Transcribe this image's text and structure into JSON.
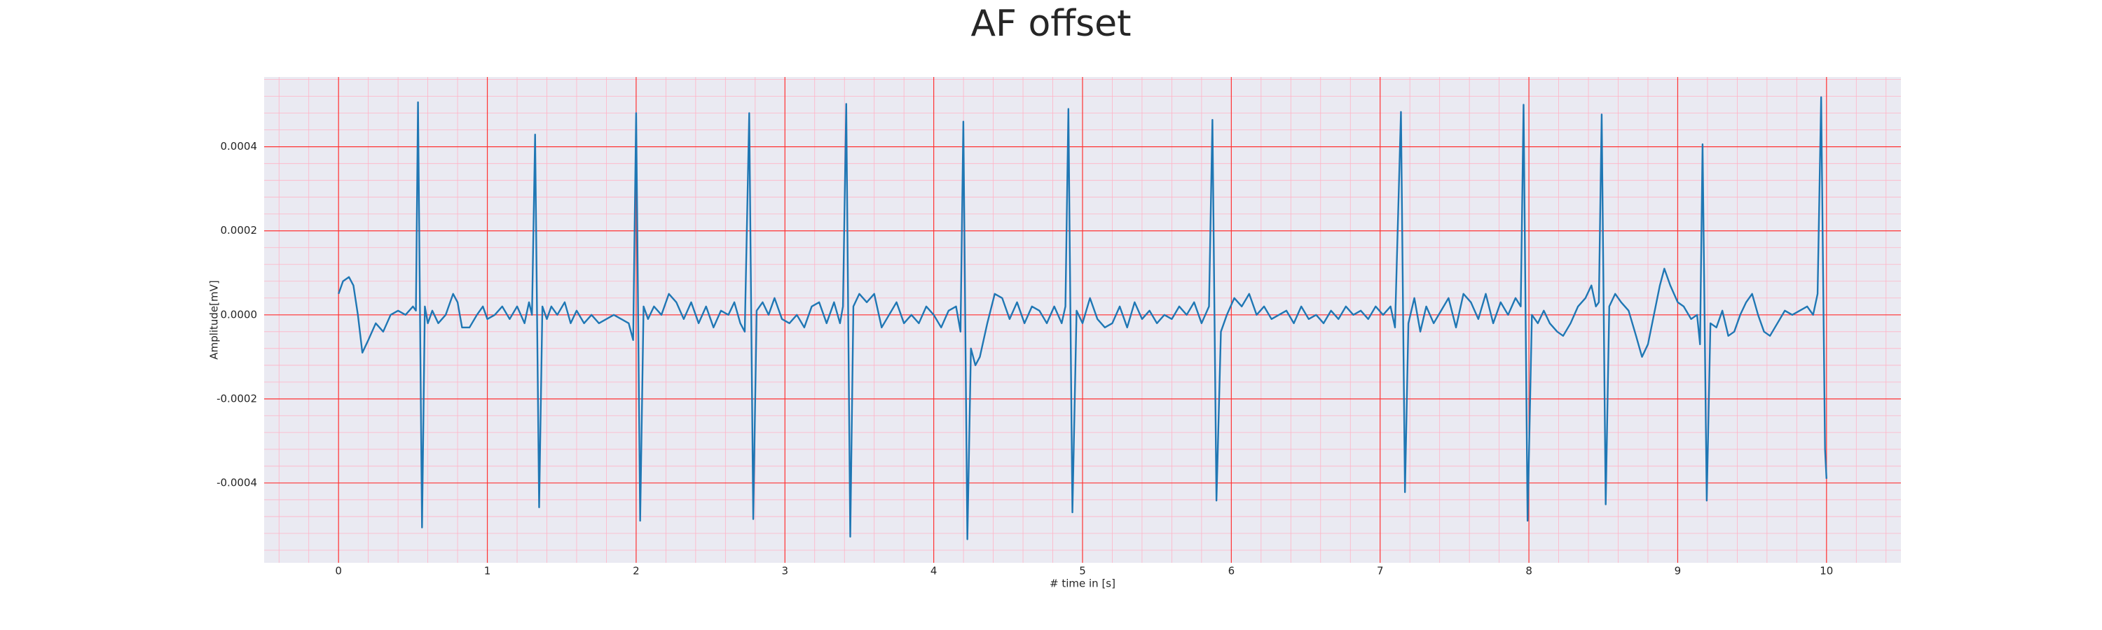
{
  "chart_data": {
    "type": "line",
    "title": "AF offset",
    "x_label": "# time in [s]",
    "y_label": "Amplitude[mV]",
    "xlim": [
      -0.5,
      10.5
    ],
    "ylim": [
      -0.00059,
      0.000566
    ],
    "xticks": [
      0,
      1,
      2,
      3,
      4,
      5,
      6,
      7,
      8,
      9,
      10
    ],
    "yticks": [
      -0.0004,
      -0.0002,
      {
        "value": 0,
        "label": "0.0000"
      },
      0.0002,
      0.0004
    ],
    "grid": true,
    "grid_color": "#ff3333",
    "minor_grid": true,
    "minor_grid_color": "#ffb3c6",
    "minor_grid_divisions": 5,
    "background": "#eaeaf2",
    "series": [
      {
        "color": "#1f77b4",
        "x": [
          0,
          0.03,
          0.07,
          0.1,
          0.13,
          0.16,
          0.2,
          0.25,
          0.3,
          0.35,
          0.4,
          0.45,
          0.5,
          0.52,
          0.534,
          0.561,
          0.58,
          0.6,
          0.63,
          0.67,
          0.72,
          0.77,
          0.8,
          0.83,
          0.88,
          0.93,
          0.97,
          1.0,
          1.05,
          1.1,
          1.15,
          1.2,
          1.25,
          1.28,
          1.3,
          1.321,
          1.348,
          1.37,
          1.4,
          1.43,
          1.47,
          1.52,
          1.56,
          1.6,
          1.65,
          1.7,
          1.75,
          1.8,
          1.85,
          1.9,
          1.95,
          1.98,
          2.0,
          2.027,
          2.05,
          2.08,
          2.12,
          2.17,
          2.22,
          2.27,
          2.32,
          2.37,
          2.42,
          2.47,
          2.52,
          2.57,
          2.62,
          2.66,
          2.7,
          2.73,
          2.76,
          2.787,
          2.81,
          2.85,
          2.89,
          2.93,
          2.98,
          3.03,
          3.08,
          3.13,
          3.18,
          3.23,
          3.28,
          3.33,
          3.37,
          3.39,
          3.412,
          3.439,
          3.46,
          3.5,
          3.55,
          3.6,
          3.65,
          3.7,
          3.75,
          3.8,
          3.85,
          3.9,
          3.95,
          4.0,
          4.05,
          4.1,
          4.15,
          4.18,
          4.199,
          4.226,
          4.25,
          4.28,
          4.31,
          4.36,
          4.41,
          4.46,
          4.51,
          4.56,
          4.61,
          4.66,
          4.71,
          4.76,
          4.81,
          4.86,
          4.885,
          4.905,
          4.932,
          4.96,
          5.0,
          5.05,
          5.1,
          5.15,
          5.2,
          5.25,
          5.3,
          5.35,
          5.4,
          5.45,
          5.5,
          5.55,
          5.6,
          5.65,
          5.7,
          5.75,
          5.8,
          5.85,
          5.873,
          5.9,
          5.93,
          5.97,
          6.02,
          6.07,
          6.12,
          6.17,
          6.22,
          6.27,
          6.32,
          6.37,
          6.42,
          6.47,
          6.52,
          6.57,
          6.62,
          6.67,
          6.72,
          6.77,
          6.82,
          6.87,
          6.92,
          6.97,
          7.02,
          7.07,
          7.1,
          7.14,
          7.167,
          7.19,
          7.23,
          7.27,
          7.31,
          7.36,
          7.41,
          7.46,
          7.51,
          7.56,
          7.61,
          7.66,
          7.71,
          7.76,
          7.81,
          7.86,
          7.91,
          7.945,
          7.964,
          7.991,
          8.02,
          8.06,
          8.1,
          8.14,
          8.19,
          8.23,
          8.28,
          8.33,
          8.38,
          8.42,
          8.45,
          8.47,
          8.489,
          8.516,
          8.54,
          8.58,
          8.62,
          8.67,
          8.72,
          8.76,
          8.8,
          8.84,
          8.88,
          8.91,
          8.95,
          9.0,
          9.04,
          9.09,
          9.13,
          9.15,
          9.167,
          9.195,
          9.22,
          9.26,
          9.3,
          9.34,
          9.38,
          9.42,
          9.46,
          9.5,
          9.54,
          9.58,
          9.62,
          9.67,
          9.72,
          9.77,
          9.82,
          9.87,
          9.91,
          9.94,
          9.964,
          9.99,
          10.0
        ],
        "values": [
          5e-05,
          8e-05,
          9e-05,
          7e-05,
          0.0,
          -9e-05,
          -6e-05,
          -2e-05,
          -4e-05,
          0.0,
          1e-05,
          0.0,
          2e-05,
          1e-05,
          0.000506,
          -0.000506,
          2e-05,
          -2e-05,
          1e-05,
          -2e-05,
          0.0,
          5e-05,
          3e-05,
          -3e-05,
          -3e-05,
          0.0,
          2e-05,
          -1e-05,
          0.0,
          2e-05,
          -1e-05,
          2e-05,
          -2e-05,
          3e-05,
          0.0,
          0.000429,
          -0.000458,
          2e-05,
          -1e-05,
          2e-05,
          0.0,
          3e-05,
          -2e-05,
          1e-05,
          -2e-05,
          0.0,
          -2e-05,
          -1e-05,
          0.0,
          -1e-05,
          -2e-05,
          -6e-05,
          0.00048,
          -0.00049,
          2e-05,
          -1e-05,
          2e-05,
          0.0,
          5e-05,
          3e-05,
          -1e-05,
          3e-05,
          -2e-05,
          2e-05,
          -3e-05,
          1e-05,
          0.0,
          3e-05,
          -2e-05,
          -4e-05,
          0.00048,
          -0.000486,
          1e-05,
          3e-05,
          0.0,
          4e-05,
          -1e-05,
          -2e-05,
          0.0,
          -3e-05,
          2e-05,
          3e-05,
          -2e-05,
          3e-05,
          -2e-05,
          2e-05,
          0.000502,
          -0.000528,
          2e-05,
          5e-05,
          3e-05,
          5e-05,
          -3e-05,
          0.0,
          3e-05,
          -2e-05,
          0.0,
          -2e-05,
          2e-05,
          0.0,
          -3e-05,
          1e-05,
          2e-05,
          -4e-05,
          0.00046,
          -0.000534,
          -8e-05,
          -0.00012,
          -0.0001,
          -2e-05,
          5e-05,
          4e-05,
          -1e-05,
          3e-05,
          -2e-05,
          2e-05,
          1e-05,
          -2e-05,
          2e-05,
          -2e-05,
          2e-05,
          0.00049,
          -0.00047,
          1e-05,
          -2e-05,
          4e-05,
          -1e-05,
          -3e-05,
          -2e-05,
          2e-05,
          -3e-05,
          3e-05,
          -1e-05,
          1e-05,
          -2e-05,
          0.0,
          -1e-05,
          2e-05,
          0.0,
          3e-05,
          -2e-05,
          2e-05,
          0.000464,
          -0.000442,
          -4e-05,
          0.0,
          4e-05,
          2e-05,
          5e-05,
          0.0,
          2e-05,
          -1e-05,
          0.0,
          1e-05,
          -2e-05,
          2e-05,
          -1e-05,
          0.0,
          -2e-05,
          1e-05,
          -1e-05,
          2e-05,
          0.0,
          1e-05,
          -1e-05,
          2e-05,
          0.0,
          2e-05,
          -3e-05,
          0.000483,
          -0.000422,
          -2e-05,
          4e-05,
          -4e-05,
          2e-05,
          -2e-05,
          1e-05,
          4e-05,
          -3e-05,
          5e-05,
          3e-05,
          -1e-05,
          5e-05,
          -2e-05,
          3e-05,
          0.0,
          4e-05,
          2e-05,
          0.0005,
          -0.00049,
          0.0,
          -2e-05,
          1e-05,
          -2e-05,
          -4e-05,
          -5e-05,
          -2e-05,
          2e-05,
          4e-05,
          7e-05,
          2e-05,
          3e-05,
          0.000477,
          -0.000451,
          2e-05,
          5e-05,
          3e-05,
          1e-05,
          -5e-05,
          -0.0001,
          -7e-05,
          0.0,
          7e-05,
          0.00011,
          7e-05,
          3e-05,
          2e-05,
          -1e-05,
          0.0,
          -7e-05,
          0.000406,
          -0.000442,
          -2e-05,
          -3e-05,
          1e-05,
          -5e-05,
          -4e-05,
          0.0,
          3e-05,
          5e-05,
          0.0,
          -4e-05,
          -5e-05,
          -2e-05,
          1e-05,
          0.0,
          1e-05,
          2e-05,
          0.0,
          5e-05,
          0.000518,
          -0.00032,
          -0.00039
        ]
      }
    ]
  }
}
